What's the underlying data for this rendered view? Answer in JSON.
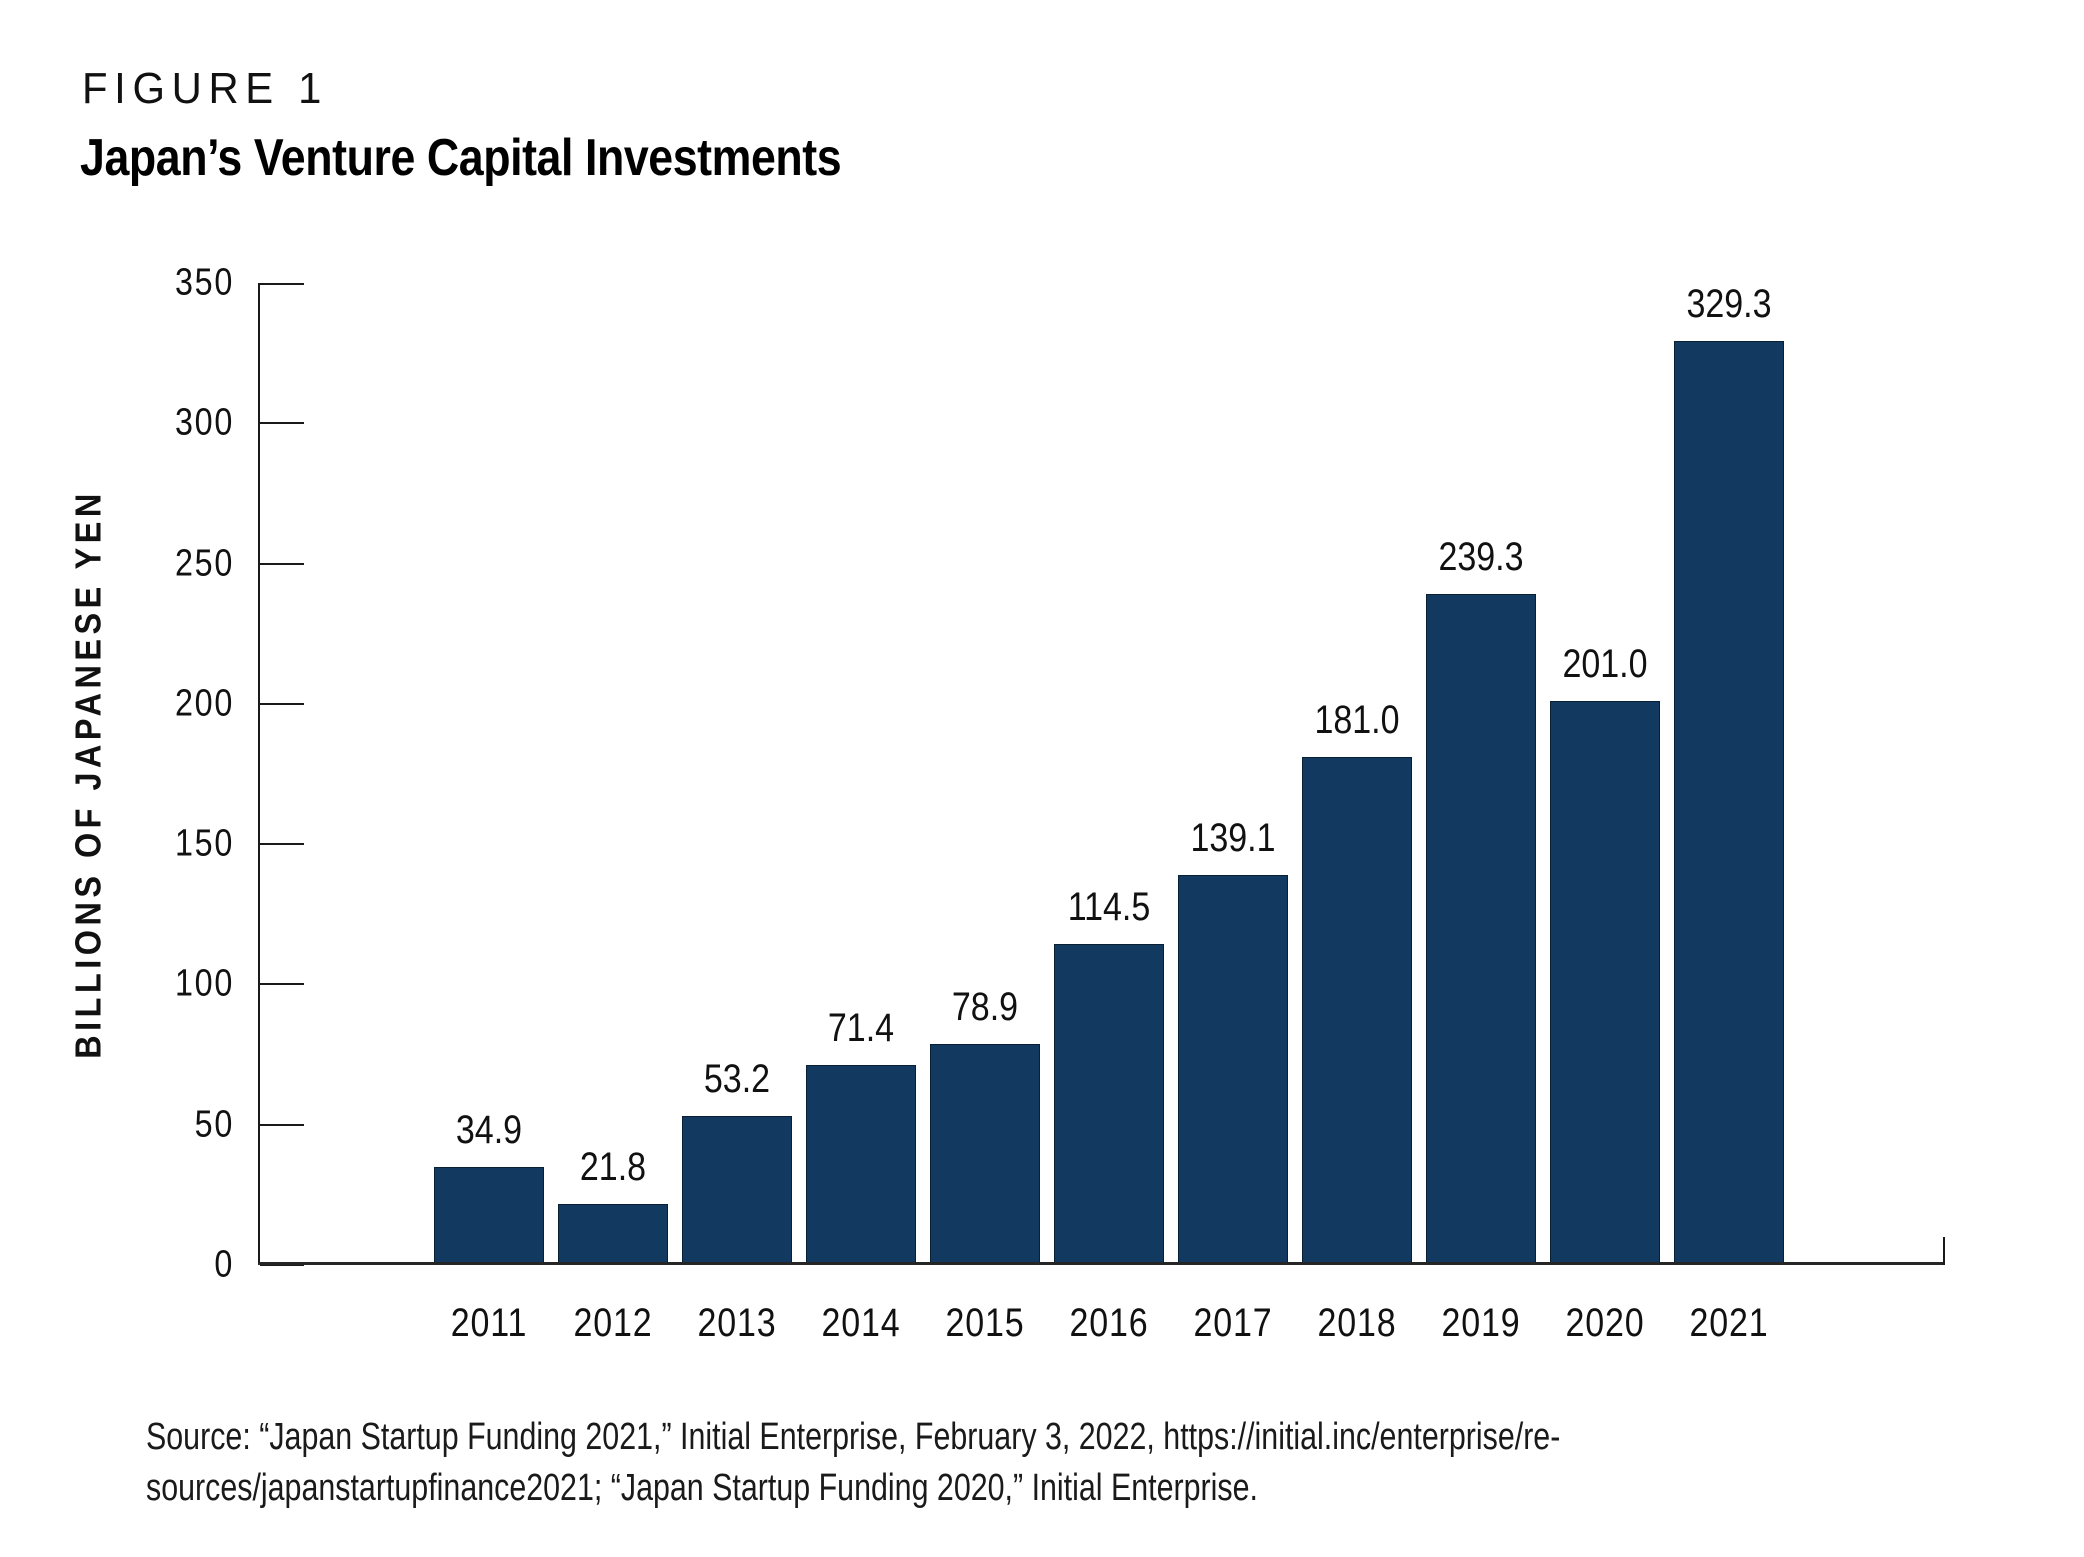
{
  "page": {
    "figure_label": "FIGURE 1",
    "title": "Japan’s Venture Capital Investments",
    "source_lines": [
      "Source: “Japan Startup Funding 2021,” Initial Enterprise, February 3, 2022, https://initial.inc/enterprise/re-",
      "sources/japanstartupfinance2021; “Japan Startup Funding 2020,” Initial Enterprise."
    ]
  },
  "chart_data": {
    "type": "bar",
    "title": "Japan’s Venture Capital Investments",
    "categories": [
      "2011",
      "2012",
      "2013",
      "2014",
      "2015",
      "2016",
      "2017",
      "2018",
      "2019",
      "2020",
      "2021"
    ],
    "values": [
      34.9,
      21.8,
      53.2,
      71.4,
      78.9,
      114.5,
      139.1,
      181.0,
      239.3,
      201.0,
      329.3
    ],
    "value_labels": [
      "34.9",
      "21.8",
      "53.2",
      "71.4",
      "78.9",
      "114.5",
      "139.1",
      "181.0",
      "239.3",
      "201.0",
      "329.3"
    ],
    "xlabel": "",
    "ylabel": "BILLIONS OF JAPANESE YEN",
    "ylim": [
      0,
      350
    ],
    "yticks": [
      0,
      50,
      100,
      150,
      200,
      250,
      300,
      350
    ],
    "grid": false,
    "legend_position": "none",
    "bar_color": "#123A60"
  },
  "colors": {
    "bar": "#123A60",
    "axis": "#1A1A1A",
    "text": "#111111",
    "background": "#FFFFFF"
  }
}
